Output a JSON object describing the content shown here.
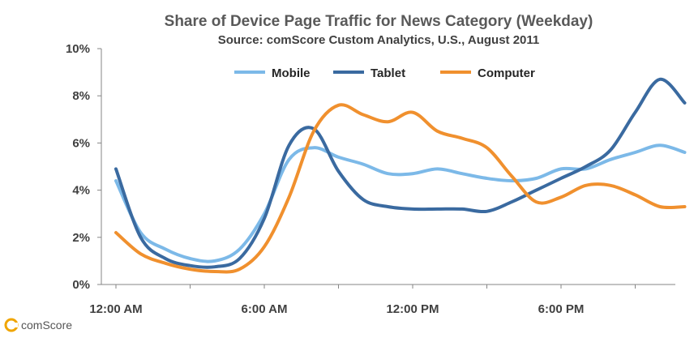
{
  "chart_data": {
    "type": "line",
    "title": "Share of Device Page Traffic for News Category (Weekday)",
    "subtitle": "Source: comScore Custom Analytics, U.S., August 2011",
    "xlabel": "",
    "ylabel": "",
    "x": [
      0,
      1,
      2,
      3,
      4,
      5,
      6,
      7,
      8,
      9,
      10,
      11,
      12,
      13,
      14,
      15,
      16,
      17,
      18,
      19,
      20,
      21,
      22,
      23
    ],
    "x_tick_labels": [
      "12:00 AM",
      "6:00 AM",
      "12:00 PM",
      "6:00 PM"
    ],
    "x_tick_hours": [
      0,
      6,
      12,
      18
    ],
    "y_tick_labels": [
      "0%",
      "2%",
      "4%",
      "6%",
      "8%",
      "10%"
    ],
    "ylim": [
      0,
      10
    ],
    "legend_position": "top-center",
    "grid": false,
    "series": [
      {
        "name": "Mobile",
        "color": "#7cb9e8",
        "values": [
          4.4,
          2.2,
          1.5,
          1.1,
          1.0,
          1.5,
          3.0,
          5.3,
          5.8,
          5.4,
          5.1,
          4.7,
          4.7,
          4.9,
          4.7,
          4.5,
          4.4,
          4.5,
          4.9,
          4.9,
          5.3,
          5.6,
          5.9,
          5.6
        ]
      },
      {
        "name": "Tablet",
        "color": "#3a6aa0",
        "values": [
          4.9,
          2.0,
          1.1,
          0.8,
          0.75,
          1.1,
          2.8,
          5.9,
          6.6,
          4.8,
          3.6,
          3.3,
          3.2,
          3.2,
          3.2,
          3.1,
          3.5,
          4.0,
          4.5,
          5.0,
          5.7,
          7.3,
          8.7,
          7.7
        ]
      },
      {
        "name": "Computer",
        "color": "#f0902e",
        "values": [
          2.2,
          1.3,
          0.9,
          0.65,
          0.55,
          0.65,
          1.6,
          3.7,
          6.5,
          7.6,
          7.2,
          6.9,
          7.3,
          6.5,
          6.2,
          5.8,
          4.6,
          3.5,
          3.7,
          4.2,
          4.2,
          3.8,
          3.3,
          3.3
        ]
      }
    ]
  },
  "brand": {
    "name": "comScore",
    "logo_icon": "comscore-logo-icon",
    "logo_color": "#f0a500"
  }
}
